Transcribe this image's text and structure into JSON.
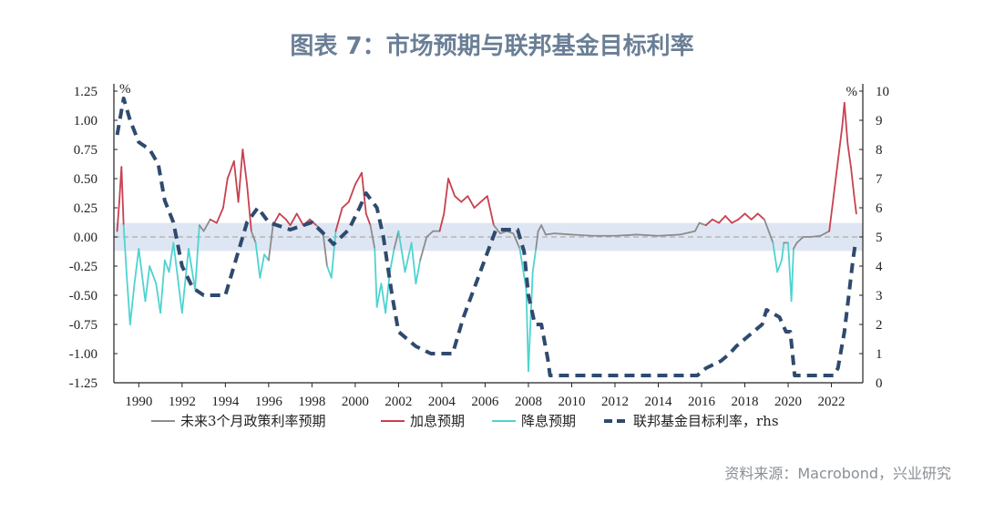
{
  "page": {
    "title": "图表 7：市场预期与联邦基金目标利率",
    "source": "资料来源：Macrobond，兴业研究"
  },
  "colors": {
    "neutral": "#8c8c8c",
    "hike": "#c8414f",
    "cut": "#4fd3d0",
    "fed_rate": "#2f4a6e",
    "band": "#dfe6f3",
    "title": "#6a7f96"
  },
  "chart_data": {
    "type": "line",
    "x_ticks": [
      "1990",
      "1992",
      "1994",
      "1996",
      "1998",
      "2000",
      "2002",
      "2004",
      "2006",
      "2008",
      "2010",
      "2012",
      "2014",
      "2016",
      "2018",
      "2020",
      "2022"
    ],
    "y_left": {
      "unit": "%",
      "ylim": [
        -1.25,
        1.25
      ],
      "ticks": [
        "1.25",
        "1.00",
        "0.75",
        "0.50",
        "0.25",
        "0.00",
        "-0.25",
        "-0.50",
        "-0.75",
        "-1.00",
        "-1.25"
      ]
    },
    "y_right": {
      "unit": "%",
      "ylim": [
        0,
        10
      ],
      "ticks": [
        "10",
        "9",
        "8",
        "7",
        "6",
        "5",
        "4",
        "3",
        "2",
        "1",
        "0"
      ]
    },
    "neutral_band": [
      -0.12,
      0.12
    ],
    "zero_line": 0,
    "legend": [
      {
        "name": "未来3个月政策利率预期",
        "key": "expectation",
        "color": "#8c8c8c",
        "style": "solid"
      },
      {
        "name": "加息预期",
        "key": "hike",
        "color": "#c8414f",
        "style": "solid"
      },
      {
        "name": "降息预期",
        "key": "cut",
        "color": "#4fd3d0",
        "style": "solid"
      },
      {
        "name": "联邦基金目标利率，rhs",
        "key": "fed",
        "color": "#2f4a6e",
        "style": "dashed"
      }
    ],
    "fed_funds_target": [
      [
        1989.0,
        8.5
      ],
      [
        1989.3,
        9.75
      ],
      [
        1989.6,
        9.0
      ],
      [
        1990.0,
        8.25
      ],
      [
        1990.5,
        8.0
      ],
      [
        1990.9,
        7.5
      ],
      [
        1991.2,
        6.25
      ],
      [
        1991.6,
        5.5
      ],
      [
        1992.0,
        4.0
      ],
      [
        1992.5,
        3.25
      ],
      [
        1993.0,
        3.0
      ],
      [
        1994.0,
        3.0
      ],
      [
        1994.5,
        4.25
      ],
      [
        1995.0,
        5.5
      ],
      [
        1995.5,
        6.0
      ],
      [
        1996.0,
        5.5
      ],
      [
        1997.0,
        5.25
      ],
      [
        1998.0,
        5.5
      ],
      [
        1998.7,
        5.0
      ],
      [
        1999.0,
        4.75
      ],
      [
        1999.7,
        5.25
      ],
      [
        2000.2,
        6.0
      ],
      [
        2000.5,
        6.5
      ],
      [
        2001.0,
        6.0
      ],
      [
        2001.3,
        5.0
      ],
      [
        2001.7,
        3.0
      ],
      [
        2002.0,
        1.75
      ],
      [
        2002.8,
        1.25
      ],
      [
        2003.5,
        1.0
      ],
      [
        2004.5,
        1.0
      ],
      [
        2005.0,
        2.25
      ],
      [
        2005.5,
        3.25
      ],
      [
        2006.0,
        4.25
      ],
      [
        2006.5,
        5.25
      ],
      [
        2007.5,
        5.25
      ],
      [
        2007.8,
        4.5
      ],
      [
        2008.0,
        3.0
      ],
      [
        2008.3,
        2.0
      ],
      [
        2008.6,
        2.0
      ],
      [
        2008.9,
        0.8
      ],
      [
        2009.0,
        0.25
      ],
      [
        2015.8,
        0.25
      ],
      [
        2016.2,
        0.5
      ],
      [
        2016.9,
        0.75
      ],
      [
        2017.3,
        1.0
      ],
      [
        2017.6,
        1.25
      ],
      [
        2018.0,
        1.5
      ],
      [
        2018.4,
        1.75
      ],
      [
        2018.8,
        2.0
      ],
      [
        2019.0,
        2.5
      ],
      [
        2019.6,
        2.25
      ],
      [
        2019.9,
        1.75
      ],
      [
        2020.1,
        1.75
      ],
      [
        2020.3,
        0.25
      ],
      [
        2022.1,
        0.25
      ],
      [
        2022.3,
        0.5
      ],
      [
        2022.6,
        1.75
      ],
      [
        2022.8,
        3.0
      ],
      [
        2023.0,
        4.25
      ],
      [
        2023.1,
        4.75
      ]
    ],
    "expectation": [
      [
        1989.0,
        0.05
      ],
      [
        1989.1,
        0.3
      ],
      [
        1989.2,
        0.6
      ],
      [
        1989.3,
        0.1
      ],
      [
        1989.45,
        -0.35
      ],
      [
        1989.6,
        -0.75
      ],
      [
        1989.8,
        -0.4
      ],
      [
        1990.0,
        -0.1
      ],
      [
        1990.3,
        -0.55
      ],
      [
        1990.5,
        -0.25
      ],
      [
        1990.8,
        -0.4
      ],
      [
        1991.0,
        -0.65
      ],
      [
        1991.2,
        -0.2
      ],
      [
        1991.4,
        -0.3
      ],
      [
        1991.6,
        -0.05
      ],
      [
        1991.8,
        -0.35
      ],
      [
        1992.0,
        -0.65
      ],
      [
        1992.3,
        -0.1
      ],
      [
        1992.6,
        -0.45
      ],
      [
        1992.8,
        0.1
      ],
      [
        1993.0,
        0.05
      ],
      [
        1993.3,
        0.15
      ],
      [
        1993.6,
        0.12
      ],
      [
        1993.9,
        0.25
      ],
      [
        1994.1,
        0.5
      ],
      [
        1994.4,
        0.65
      ],
      [
        1994.6,
        0.3
      ],
      [
        1994.8,
        0.75
      ],
      [
        1995.0,
        0.45
      ],
      [
        1995.2,
        0.05
      ],
      [
        1995.4,
        -0.05
      ],
      [
        1995.6,
        -0.35
      ],
      [
        1995.8,
        -0.15
      ],
      [
        1996.0,
        -0.2
      ],
      [
        1996.2,
        0.1
      ],
      [
        1996.5,
        0.2
      ],
      [
        1996.8,
        0.15
      ],
      [
        1997.0,
        0.1
      ],
      [
        1997.3,
        0.2
      ],
      [
        1997.6,
        0.1
      ],
      [
        1997.9,
        0.15
      ],
      [
        1998.2,
        0.1
      ],
      [
        1998.5,
        0.05
      ],
      [
        1998.7,
        -0.25
      ],
      [
        1998.9,
        -0.35
      ],
      [
        1999.1,
        0.05
      ],
      [
        1999.4,
        0.25
      ],
      [
        1999.7,
        0.3
      ],
      [
        2000.0,
        0.45
      ],
      [
        2000.3,
        0.55
      ],
      [
        2000.5,
        0.2
      ],
      [
        2000.7,
        0.1
      ],
      [
        2000.9,
        -0.1
      ],
      [
        2001.0,
        -0.6
      ],
      [
        2001.2,
        -0.4
      ],
      [
        2001.4,
        -0.65
      ],
      [
        2001.6,
        -0.3
      ],
      [
        2001.8,
        -0.1
      ],
      [
        2002.0,
        0.05
      ],
      [
        2002.3,
        -0.3
      ],
      [
        2002.6,
        -0.05
      ],
      [
        2002.8,
        -0.4
      ],
      [
        2003.0,
        -0.2
      ],
      [
        2003.3,
        0.0
      ],
      [
        2003.6,
        0.05
      ],
      [
        2003.9,
        0.05
      ],
      [
        2004.1,
        0.2
      ],
      [
        2004.3,
        0.5
      ],
      [
        2004.6,
        0.35
      ],
      [
        2004.9,
        0.3
      ],
      [
        2005.2,
        0.35
      ],
      [
        2005.5,
        0.25
      ],
      [
        2005.8,
        0.3
      ],
      [
        2006.1,
        0.35
      ],
      [
        2006.4,
        0.1
      ],
      [
        2006.7,
        0.03
      ],
      [
        2007.0,
        0.05
      ],
      [
        2007.3,
        0.03
      ],
      [
        2007.6,
        -0.1
      ],
      [
        2007.9,
        -0.45
      ],
      [
        2008.0,
        -1.15
      ],
      [
        2008.2,
        -0.3
      ],
      [
        2008.35,
        -0.1
      ],
      [
        2008.45,
        0.05
      ],
      [
        2008.6,
        0.1
      ],
      [
        2008.8,
        0.02
      ],
      [
        2009.2,
        0.03
      ],
      [
        2010.0,
        0.02
      ],
      [
        2011.0,
        0.01
      ],
      [
        2012.0,
        0.01
      ],
      [
        2013.0,
        0.02
      ],
      [
        2014.0,
        0.01
      ],
      [
        2015.0,
        0.02
      ],
      [
        2015.7,
        0.05
      ],
      [
        2015.9,
        0.12
      ],
      [
        2016.2,
        0.1
      ],
      [
        2016.5,
        0.15
      ],
      [
        2016.8,
        0.12
      ],
      [
        2017.1,
        0.18
      ],
      [
        2017.4,
        0.12
      ],
      [
        2017.7,
        0.15
      ],
      [
        2018.0,
        0.2
      ],
      [
        2018.3,
        0.15
      ],
      [
        2018.6,
        0.2
      ],
      [
        2018.9,
        0.15
      ],
      [
        2019.1,
        0.05
      ],
      [
        2019.3,
        -0.05
      ],
      [
        2019.5,
        -0.3
      ],
      [
        2019.7,
        -0.2
      ],
      [
        2019.8,
        -0.05
      ],
      [
        2020.0,
        -0.05
      ],
      [
        2020.15,
        -0.55
      ],
      [
        2020.25,
        -0.1
      ],
      [
        2020.4,
        -0.05
      ],
      [
        2020.7,
        0.0
      ],
      [
        2021.0,
        0.0
      ],
      [
        2021.5,
        0.01
      ],
      [
        2021.9,
        0.05
      ],
      [
        2022.1,
        0.35
      ],
      [
        2022.3,
        0.65
      ],
      [
        2022.5,
        0.95
      ],
      [
        2022.6,
        1.15
      ],
      [
        2022.75,
        0.8
      ],
      [
        2022.9,
        0.6
      ],
      [
        2023.05,
        0.35
      ],
      [
        2023.15,
        0.2
      ]
    ]
  }
}
